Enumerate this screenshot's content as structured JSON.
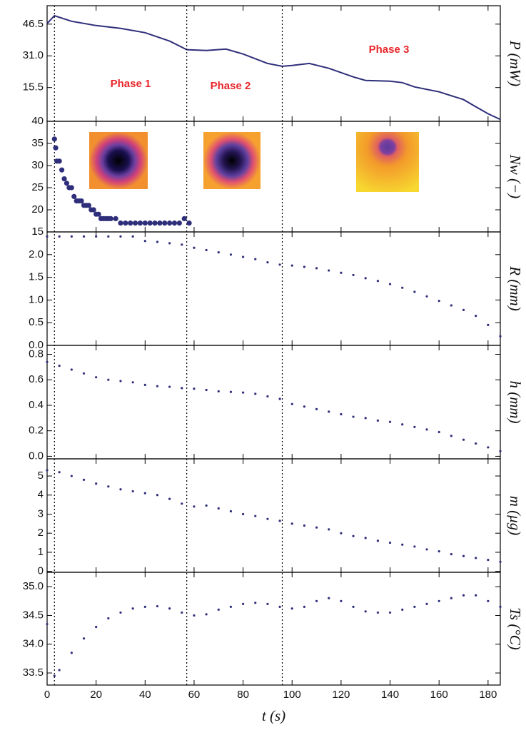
{
  "chart_data": [
    {
      "type": "line",
      "ylabel": "P (mW)",
      "color": "#2e2e7a",
      "x": [
        0,
        3,
        10,
        20,
        30,
        40,
        50,
        57,
        65,
        73,
        80,
        90,
        96,
        100,
        107,
        115,
        125,
        130,
        140,
        145,
        150,
        160,
        170,
        175,
        180,
        185
      ],
      "values": [
        46.8,
        50.6,
        47.9,
        45.8,
        44.4,
        42.3,
        38.2,
        34,
        33.6,
        34.3,
        31.9,
        27.3,
        25.9,
        26.3,
        27.3,
        24.9,
        20.7,
        19,
        18.6,
        17.9,
        15.8,
        13.4,
        9.6,
        6.1,
        2.7,
        -0.1
      ],
      "xlim": [
        0,
        185
      ],
      "ylim": [
        -1,
        55.5
      ],
      "yticks": [
        15.5,
        {
          "value": 31,
          "label": "31.0"
        },
        46.5
      ],
      "vlines": [
        3,
        57,
        96
      ],
      "annotations": [
        "Phase 1",
        "Phase 2",
        "Phase 3"
      ]
    },
    {
      "type": "scatter",
      "ylabel": "Nw (−)",
      "color": "#2e2e7a",
      "marker_size": 3.6,
      "x": [
        3,
        3.5,
        4,
        5,
        6,
        7,
        8,
        9,
        10,
        11,
        12,
        13,
        14,
        15,
        16,
        17,
        18,
        19,
        20,
        21,
        22,
        23,
        24,
        25,
        26,
        28,
        30,
        32,
        34,
        36,
        38,
        40,
        42,
        44,
        46,
        48,
        50,
        52,
        54,
        56,
        58
      ],
      "values": [
        36,
        34,
        31,
        31,
        29,
        27,
        26,
        25,
        25,
        23,
        22,
        22,
        22,
        21,
        21,
        21,
        20,
        20,
        19,
        19,
        18,
        18,
        18,
        18,
        18,
        18,
        17,
        17,
        17,
        17,
        17,
        17,
        17,
        17,
        17,
        17,
        17,
        17,
        17,
        18,
        17
      ],
      "xlim": [
        0,
        185
      ],
      "ylim": [
        15,
        40
      ],
      "yticks": [
        15,
        20,
        25,
        30,
        35,
        40
      ]
    },
    {
      "type": "scatter",
      "ylabel": "R (mm)",
      "color": "#2e2e7a",
      "marker_size": 1.6,
      "x": [
        0,
        5,
        10,
        15,
        20,
        25,
        30,
        35,
        40,
        45,
        50,
        55,
        60,
        65,
        70,
        75,
        80,
        85,
        90,
        95,
        100,
        105,
        110,
        115,
        120,
        125,
        130,
        135,
        140,
        145,
        150,
        155,
        160,
        165,
        170,
        175,
        180,
        185
      ],
      "values": [
        2.4,
        2.4,
        2.4,
        2.4,
        2.4,
        2.4,
        2.4,
        2.4,
        2.3,
        2.28,
        2.25,
        2.22,
        2.15,
        2.1,
        2.05,
        2.0,
        1.95,
        1.9,
        1.83,
        1.78,
        1.76,
        1.73,
        1.7,
        1.65,
        1.6,
        1.55,
        1.48,
        1.42,
        1.35,
        1.27,
        1.18,
        1.08,
        0.98,
        0.88,
        0.78,
        0.65,
        0.45,
        0.2
      ],
      "xlim": [
        0,
        185
      ],
      "ylim": [
        0,
        2.5
      ],
      "yticks": [
        {
          "value": 0,
          "label": "0.0"
        },
        0.5,
        {
          "value": 1,
          "label": "1.0"
        },
        1.5,
        {
          "value": 2,
          "label": "2.0"
        }
      ]
    },
    {
      "type": "scatter",
      "ylabel": "h (mm)",
      "color": "#2e2e7a",
      "marker_size": 1.6,
      "x": [
        0,
        5,
        10,
        15,
        20,
        25,
        30,
        35,
        40,
        45,
        50,
        55,
        60,
        65,
        70,
        75,
        80,
        85,
        90,
        95,
        100,
        105,
        110,
        115,
        120,
        125,
        130,
        135,
        140,
        145,
        150,
        155,
        160,
        165,
        170,
        175,
        180,
        185
      ],
      "values": [
        0.74,
        0.71,
        0.68,
        0.65,
        0.62,
        0.6,
        0.59,
        0.58,
        0.56,
        0.55,
        0.545,
        0.535,
        0.53,
        0.52,
        0.51,
        0.505,
        0.5,
        0.49,
        0.47,
        0.45,
        0.41,
        0.39,
        0.37,
        0.35,
        0.33,
        0.31,
        0.3,
        0.28,
        0.27,
        0.25,
        0.23,
        0.21,
        0.19,
        0.16,
        0.13,
        0.1,
        0.07,
        0.04
      ],
      "xlim": [
        0,
        185
      ],
      "ylim": [
        -0.02,
        0.87
      ],
      "yticks": [
        {
          "value": 0,
          "label": "0.0"
        },
        0.2,
        0.4,
        0.6,
        0.8
      ]
    },
    {
      "type": "scatter",
      "ylabel": "m (μg)",
      "color": "#2e2e7a",
      "marker_size": 1.6,
      "x": [
        0,
        5,
        10,
        15,
        20,
        25,
        30,
        35,
        40,
        45,
        50,
        55,
        60,
        65,
        70,
        75,
        80,
        85,
        90,
        95,
        100,
        105,
        110,
        115,
        120,
        125,
        130,
        135,
        140,
        145,
        150,
        155,
        160,
        165,
        170,
        175,
        180,
        185
      ],
      "values": [
        5.3,
        5.2,
        5.0,
        4.8,
        4.6,
        4.45,
        4.3,
        4.2,
        4.1,
        4.0,
        3.8,
        3.55,
        3.4,
        3.45,
        3.3,
        3.15,
        3.0,
        2.9,
        2.75,
        2.65,
        2.5,
        2.4,
        2.3,
        2.2,
        2.0,
        1.85,
        1.75,
        1.6,
        1.5,
        1.4,
        1.3,
        1.15,
        1.05,
        0.9,
        0.8,
        0.7,
        0.6,
        0.5
      ],
      "xlim": [
        0,
        185
      ],
      "ylim": [
        -0.05,
        5.9
      ],
      "yticks": [
        0,
        1,
        2,
        3,
        4,
        5
      ]
    },
    {
      "type": "scatter",
      "ylabel": "Ts (°C)",
      "xlabel": "t (s)",
      "color": "#2e2e7a",
      "marker_size": 1.6,
      "x": [
        0,
        3,
        5,
        10,
        15,
        20,
        25,
        30,
        35,
        40,
        45,
        50,
        55,
        60,
        65,
        70,
        75,
        80,
        85,
        90,
        95,
        100,
        105,
        110,
        115,
        120,
        125,
        130,
        135,
        140,
        145,
        150,
        155,
        160,
        165,
        170,
        175,
        180,
        185
      ],
      "values": [
        34.35,
        33.45,
        33.55,
        33.85,
        34.1,
        34.3,
        34.45,
        34.55,
        34.62,
        34.65,
        34.66,
        34.62,
        34.55,
        34.5,
        34.52,
        34.6,
        34.65,
        34.7,
        34.72,
        34.7,
        34.65,
        34.62,
        34.65,
        34.75,
        34.8,
        34.75,
        34.65,
        34.57,
        34.55,
        34.55,
        34.6,
        34.65,
        34.7,
        34.75,
        34.8,
        34.85,
        34.85,
        34.75,
        34.65
      ],
      "xlim": [
        0,
        185
      ],
      "ylim": [
        33.29,
        35.25
      ],
      "yticks": [
        33.5,
        {
          "value": 34,
          "label": "34.0"
        },
        34.5,
        {
          "value": 35,
          "label": "35.0"
        }
      ],
      "xticks": [
        0,
        20,
        40,
        60,
        80,
        100,
        120,
        140,
        160,
        180
      ]
    }
  ]
}
